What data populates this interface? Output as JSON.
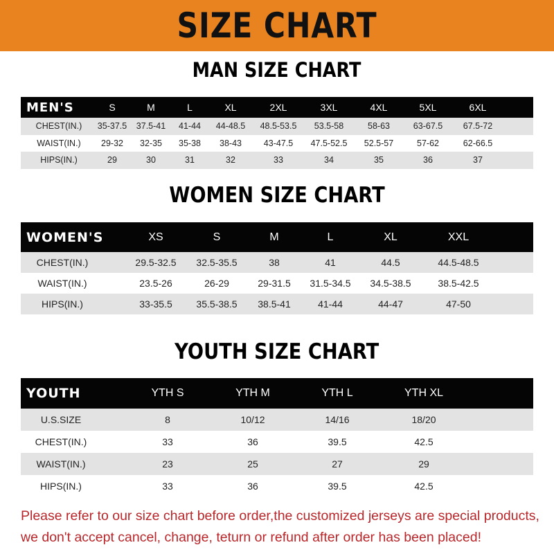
{
  "title": "SIZE CHART",
  "colors": {
    "banner": "#e8831f",
    "header_row": "#050505",
    "stripe": "#e3e3e3",
    "note": "#b8262a"
  },
  "men": {
    "title": "MAN SIZE CHART",
    "header": [
      "MEN'S",
      "S",
      "M",
      "L",
      "XL",
      "2XL",
      "3XL",
      "4XL",
      "5XL",
      "6XL"
    ],
    "rows": [
      [
        "CHEST(IN.)",
        "35-37.5",
        "37.5-41",
        "41-44",
        "44-48.5",
        "48.5-53.5",
        "53.5-58",
        "58-63",
        "63-67.5",
        "67.5-72"
      ],
      [
        "WAIST(IN.)",
        "29-32",
        "32-35",
        "35-38",
        "38-43",
        "43-47.5",
        "47.5-52.5",
        "52.5-57",
        "57-62",
        "62-66.5"
      ],
      [
        "HIPS(IN.)",
        "29",
        "30",
        "31",
        "32",
        "33",
        "34",
        "35",
        "36",
        "37"
      ]
    ]
  },
  "women": {
    "title": "WOMEN SIZE CHART",
    "header": [
      "WOMEN'S",
      "XS",
      "S",
      "M",
      "L",
      "XL",
      "XXL"
    ],
    "rows": [
      [
        "CHEST(IN.)",
        "29.5-32.5",
        "32.5-35.5",
        "38",
        "41",
        "44.5",
        "44.5-48.5"
      ],
      [
        "WAIST(IN.)",
        "23.5-26",
        "26-29",
        "29-31.5",
        "31.5-34.5",
        "34.5-38.5",
        "38.5-42.5"
      ],
      [
        "HIPS(IN.)",
        "33-35.5",
        "35.5-38.5",
        "38.5-41",
        "41-44",
        "44-47",
        "47-50"
      ]
    ]
  },
  "youth": {
    "title": "YOUTH SIZE CHART",
    "header": [
      "YOUTH",
      "YTH S",
      "YTH M",
      "YTH L",
      "YTH XL"
    ],
    "rows": [
      [
        "U.S.SIZE",
        "8",
        "10/12",
        "14/16",
        "18/20"
      ],
      [
        "CHEST(IN.)",
        "33",
        "36",
        "39.5",
        "42.5"
      ],
      [
        "WAIST(IN.)",
        "23",
        "25",
        "27",
        "29"
      ],
      [
        "HIPS(IN.)",
        "33",
        "36",
        "39.5",
        "42.5"
      ]
    ]
  },
  "note": {
    "line1": "Please refer to our size chart before order,the customized jerseys are special products,",
    "line2": "we don't accept cancel, change, teturn or refund after order has been placed!"
  }
}
